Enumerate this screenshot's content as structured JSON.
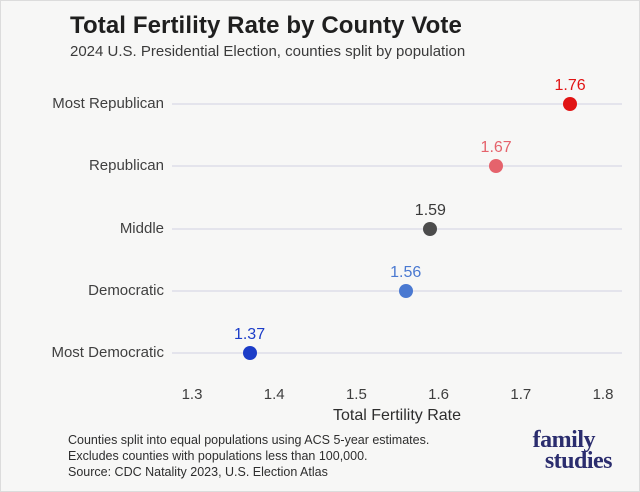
{
  "header": {
    "title": "Total Fertility Rate by County Vote",
    "subtitle": "2024 U.S. Presidential Election, counties split by population"
  },
  "chart_data": {
    "type": "scatter",
    "variant": "horizontal-dot-plot",
    "title": "Total Fertility Rate by County Vote",
    "subtitle": "2024 U.S. Presidential Election, counties split by population",
    "categories": [
      "Most Republican",
      "Republican",
      "Middle",
      "Democratic",
      "Most Democratic"
    ],
    "values": [
      1.76,
      1.67,
      1.59,
      1.56,
      1.37
    ],
    "point_colors": [
      "#e11414",
      "#e5636c",
      "#4c4c4c",
      "#4a79d1",
      "#1c3dc8"
    ],
    "value_label_colors": [
      "#e11414",
      "#e5636c",
      "#3a3a3a",
      "#4a79d1",
      "#1c3dc8"
    ],
    "xlabel": "Total Fertility Rate",
    "ylabel": "",
    "xlim": [
      1.3,
      1.8
    ],
    "xticks": [
      1.3,
      1.4,
      1.5,
      1.6,
      1.7,
      1.8
    ],
    "grid": "horizontal-row-lines-only",
    "legend": "none",
    "row_line_color": "#e4e4ec",
    "background_color": "#f7f7f6"
  },
  "footer": {
    "notes": [
      "Counties split into equal populations using ACS 5-year estimates.",
      "Excludes counties with populations less than 100,000.",
      "Source: CDC Natality 2023, U.S. Election Atlas"
    ],
    "logo": {
      "line1": "family",
      "line2": "studies",
      "color": "#2b2d6e"
    }
  }
}
